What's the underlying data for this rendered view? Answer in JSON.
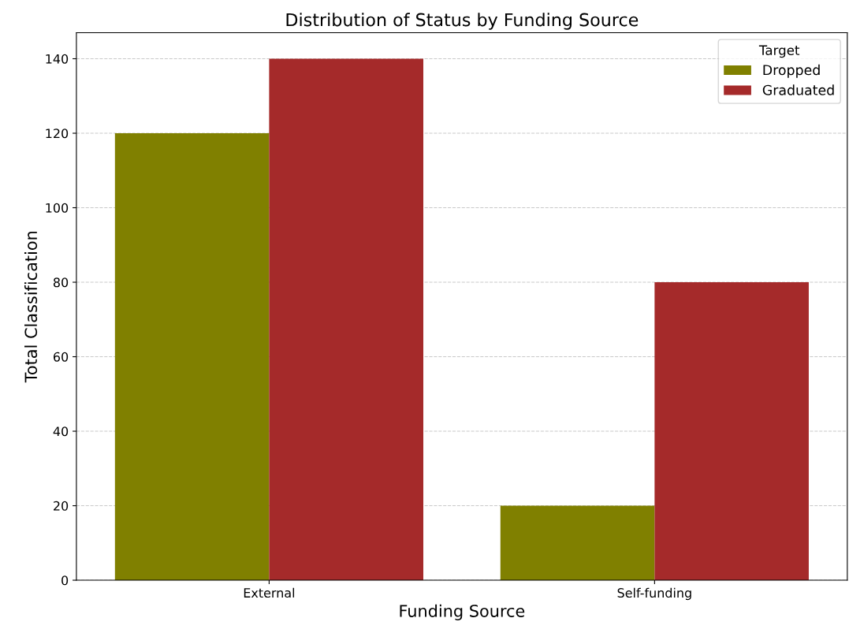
{
  "chart_data": {
    "type": "bar",
    "title": "Distribution of Status by Funding Source",
    "xlabel": "Funding Source",
    "ylabel": "Total Classification",
    "legend_title": "Target",
    "categories": [
      "External",
      "Self-funding"
    ],
    "series": [
      {
        "name": "Dropped",
        "color": "#808000",
        "values": [
          120,
          20
        ]
      },
      {
        "name": "Graduated",
        "color": "#a52a2a",
        "values": [
          140,
          80
        ]
      }
    ],
    "ylim": [
      0,
      147
    ],
    "yticks": [
      0,
      20,
      40,
      60,
      80,
      100,
      120,
      140
    ],
    "grid": "y",
    "legend": "top right"
  }
}
